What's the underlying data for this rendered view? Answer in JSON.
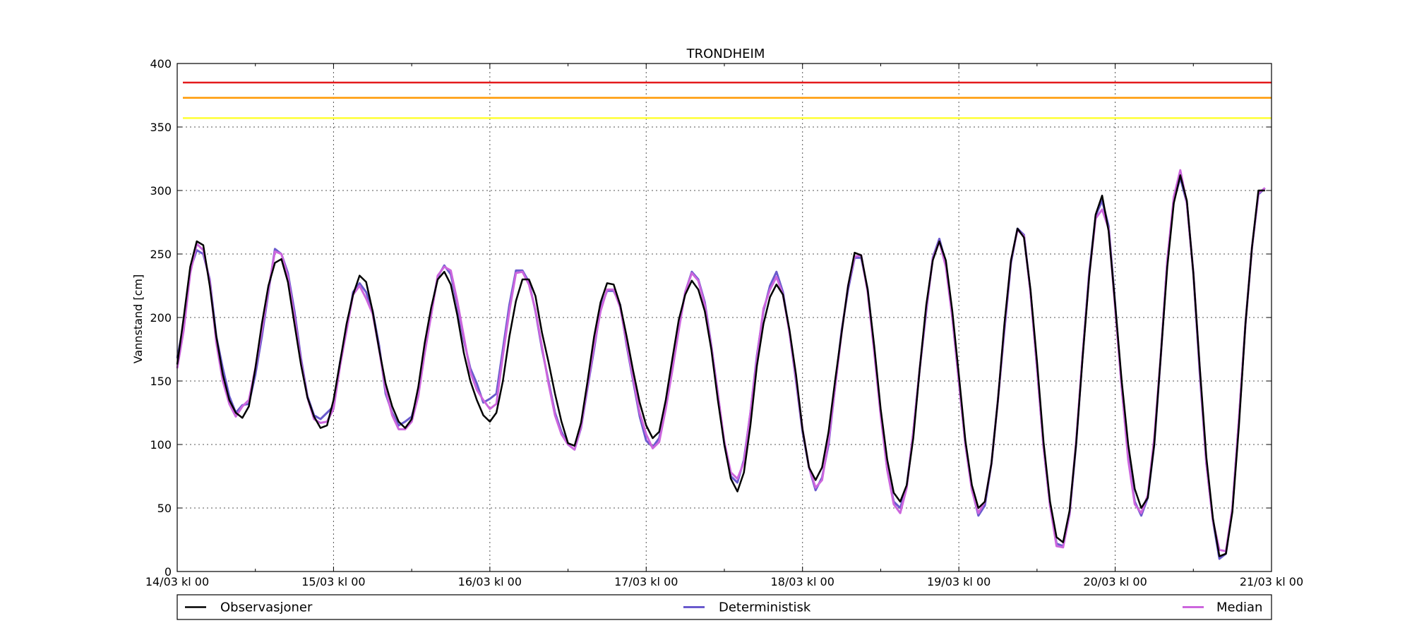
{
  "chart_data": {
    "type": "line",
    "title": "TRONDHEIM",
    "xlabel": "",
    "ylabel": "Vannstand [cm]",
    "ylim": [
      0,
      400
    ],
    "xlim": [
      0,
      7
    ],
    "x_unit": "days since 14/03 kl 00 (hours from 14/03 00:00 / 24)",
    "x_ticklabels": [
      "14/03 kl 00",
      "15/03 kl 00",
      "16/03 kl 00",
      "17/03 kl 00",
      "18/03 kl 00",
      "19/03 kl 00",
      "20/03 kl 00",
      "21/03 kl 00"
    ],
    "x_ticks": [
      0,
      1,
      2,
      3,
      4,
      5,
      6,
      7
    ],
    "x_minor_ticks": [
      0.5,
      1.5,
      2.5,
      3.5,
      4.5,
      5.5,
      6.5
    ],
    "y_ticks": [
      0,
      50,
      100,
      150,
      200,
      250,
      300,
      350,
      400
    ],
    "grid": true,
    "legend_position": "below-plot",
    "x_step_hours": 1,
    "thresholds": [
      {
        "value": 385,
        "color": "#e41a1c"
      },
      {
        "value": 373,
        "color": "#ff9800"
      },
      {
        "value": 357,
        "color": "#ffff33"
      }
    ],
    "series": [
      {
        "name": "Observasjoner",
        "color": "#000000",
        "values": [
          163,
          200,
          240,
          260,
          257,
          225,
          185,
          155,
          135,
          125,
          121,
          130,
          160,
          195,
          225,
          243,
          246,
          228,
          195,
          163,
          137,
          122,
          113,
          115,
          135,
          165,
          195,
          218,
          233,
          228,
          205,
          175,
          148,
          130,
          118,
          113,
          120,
          145,
          180,
          208,
          230,
          236,
          226,
          202,
          172,
          150,
          135,
          123,
          118,
          125,
          150,
          185,
          213,
          230,
          230,
          217,
          188,
          165,
          140,
          118,
          101,
          99,
          117,
          150,
          185,
          212,
          227,
          226,
          210,
          185,
          158,
          133,
          115,
          105,
          110,
          135,
          167,
          198,
          218,
          229,
          222,
          205,
          175,
          135,
          100,
          73,
          63,
          78,
          115,
          162,
          195,
          216,
          226,
          218,
          190,
          155,
          112,
          82,
          72,
          82,
          110,
          150,
          188,
          225,
          251,
          249,
          222,
          178,
          128,
          88,
          62,
          55,
          68,
          105,
          160,
          210,
          245,
          260,
          245,
          205,
          155,
          103,
          68,
          50,
          55,
          85,
          135,
          195,
          245,
          270,
          263,
          222,
          165,
          102,
          55,
          27,
          23,
          48,
          100,
          168,
          232,
          281,
          296,
          268,
          210,
          150,
          100,
          65,
          50,
          58,
          100,
          170,
          240,
          290,
          312,
          292,
          235,
          160,
          90,
          42,
          12,
          14,
          47,
          115,
          195,
          255,
          300,
          300
        ]
      },
      {
        "name": "Deterministisk",
        "color": "#6a5acd",
        "values": [
          168,
          195,
          238,
          253,
          250,
          230,
          185,
          160,
          138,
          125,
          131,
          132,
          155,
          185,
          220,
          254,
          250,
          235,
          205,
          168,
          138,
          123,
          120,
          125,
          130,
          165,
          190,
          220,
          227,
          220,
          205,
          178,
          140,
          125,
          115,
          118,
          122,
          140,
          175,
          205,
          232,
          241,
          234,
          210,
          182,
          160,
          148,
          133,
          136,
          140,
          175,
          210,
          237,
          237,
          228,
          205,
          175,
          150,
          125,
          110,
          100,
          96,
          113,
          145,
          175,
          208,
          221,
          221,
          210,
          178,
          150,
          122,
          103,
          98,
          105,
          130,
          160,
          192,
          220,
          236,
          230,
          212,
          178,
          140,
          100,
          75,
          70,
          88,
          125,
          170,
          205,
          225,
          236,
          220,
          188,
          150,
          110,
          82,
          64,
          74,
          100,
          145,
          190,
          222,
          247,
          247,
          222,
          175,
          125,
          80,
          55,
          50,
          67,
          110,
          160,
          205,
          247,
          262,
          243,
          200,
          150,
          100,
          65,
          44,
          52,
          85,
          135,
          190,
          243,
          270,
          265,
          220,
          160,
          98,
          52,
          22,
          20,
          45,
          100,
          170,
          235,
          280,
          292,
          272,
          210,
          145,
          90,
          55,
          44,
          58,
          100,
          170,
          245,
          292,
          310,
          290,
          235,
          155,
          85,
          40,
          10,
          14,
          50,
          120,
          195,
          255,
          297,
          302
        ]
      },
      {
        "name": "Median",
        "color": "#cc66dd",
        "values": [
          160,
          190,
          235,
          258,
          253,
          228,
          180,
          150,
          132,
          122,
          130,
          135,
          160,
          190,
          222,
          252,
          250,
          232,
          200,
          165,
          137,
          120,
          117,
          118,
          128,
          162,
          190,
          218,
          225,
          215,
          203,
          175,
          143,
          123,
          112,
          112,
          118,
          138,
          172,
          202,
          233,
          240,
          237,
          213,
          185,
          157,
          143,
          135,
          128,
          132,
          170,
          205,
          235,
          236,
          226,
          206,
          177,
          148,
          123,
          108,
          100,
          96,
          114,
          147,
          178,
          205,
          222,
          222,
          208,
          180,
          152,
          125,
          108,
          97,
          102,
          128,
          158,
          190,
          220,
          235,
          229,
          210,
          177,
          140,
          102,
          78,
          73,
          86,
          125,
          168,
          207,
          222,
          232,
          218,
          188,
          152,
          112,
          82,
          66,
          72,
          103,
          145,
          188,
          225,
          248,
          249,
          220,
          173,
          123,
          80,
          53,
          46,
          66,
          110,
          160,
          207,
          246,
          260,
          240,
          200,
          150,
          100,
          64,
          46,
          55,
          85,
          135,
          193,
          245,
          269,
          264,
          220,
          160,
          98,
          52,
          20,
          19,
          46,
          102,
          170,
          233,
          278,
          285,
          270,
          207,
          145,
          88,
          53,
          46,
          60,
          105,
          170,
          245,
          295,
          316,
          290,
          235,
          158,
          85,
          40,
          17,
          16,
          50,
          120,
          195,
          255,
          298,
          302
        ]
      }
    ]
  }
}
